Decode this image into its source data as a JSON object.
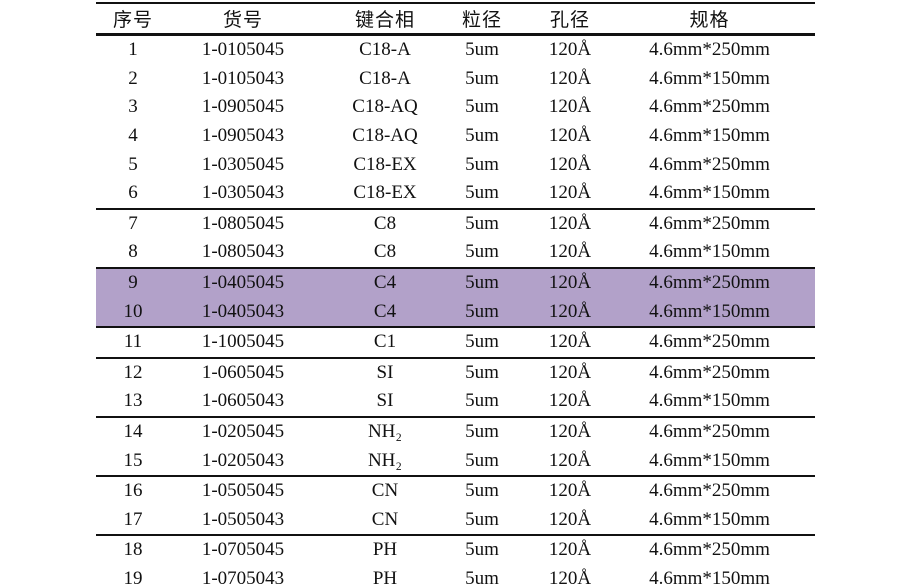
{
  "table": {
    "columns": [
      {
        "key": "index",
        "label": "序号"
      },
      {
        "key": "catalog",
        "label": "货号"
      },
      {
        "key": "phase",
        "label": "键合相"
      },
      {
        "key": "particle",
        "label": "粒径"
      },
      {
        "key": "pore",
        "label": "孔径"
      },
      {
        "key": "spec",
        "label": "规格"
      }
    ],
    "rows": [
      [
        "1",
        "1-0105045",
        "C18-A",
        "5um",
        "120Å",
        "4.6mm*250mm"
      ],
      [
        "2",
        "1-0105043",
        "C18-A",
        "5um",
        "120Å",
        "4.6mm*150mm"
      ],
      [
        "3",
        "1-0905045",
        "C18-AQ",
        "5um",
        "120Å",
        "4.6mm*250mm"
      ],
      [
        "4",
        "1-0905043",
        "C18-AQ",
        "5um",
        "120Å",
        "4.6mm*150mm"
      ],
      [
        "5",
        "1-0305045",
        "C18-EX",
        "5um",
        "120Å",
        "4.6mm*250mm"
      ],
      [
        "6",
        "1-0305043",
        "C18-EX",
        "5um",
        "120Å",
        "4.6mm*150mm"
      ],
      [
        "7",
        "1-0805045",
        "C8",
        "5um",
        "120Å",
        "4.6mm*250mm"
      ],
      [
        "8",
        "1-0805043",
        "C8",
        "5um",
        "120Å",
        "4.6mm*150mm"
      ],
      [
        "9",
        "1-0405045",
        "C4",
        "5um",
        "120Å",
        "4.6mm*250mm"
      ],
      [
        "10",
        "1-0405043",
        "C4",
        "5um",
        "120Å",
        "4.6mm*150mm"
      ],
      [
        "11",
        "1-1005045",
        "C1",
        "5um",
        "120Å",
        "4.6mm*250mm"
      ],
      [
        "12",
        "1-0605045",
        "SI",
        "5um",
        "120Å",
        "4.6mm*250mm"
      ],
      [
        "13",
        "1-0605043",
        "SI",
        "5um",
        "120Å",
        "4.6mm*150mm"
      ],
      [
        "14",
        "1-0205045",
        "NH₂",
        "5um",
        "120Å",
        "4.6mm*250mm"
      ],
      [
        "15",
        "1-0205043",
        "NH₂",
        "5um",
        "120Å",
        "4.6mm*150mm"
      ],
      [
        "16",
        "1-0505045",
        "CN",
        "5um",
        "120Å",
        "4.6mm*250mm"
      ],
      [
        "17",
        "1-0505043",
        "CN",
        "5um",
        "120Å",
        "4.6mm*150mm"
      ],
      [
        "18",
        "1-0705045",
        "PH",
        "5um",
        "120Å",
        "4.6mm*250mm"
      ],
      [
        "19",
        "1-0705043",
        "PH",
        "5um",
        "120Å",
        "4.6mm*150mm"
      ]
    ],
    "highlighted_rows": [
      9,
      10
    ],
    "group_dividers_after_rows": [
      6,
      8,
      10,
      11,
      13,
      15,
      17
    ],
    "colors": {
      "highlight": "#b2a1c9",
      "text": "#111111",
      "line": "#111111",
      "background": "#ffffff"
    }
  }
}
